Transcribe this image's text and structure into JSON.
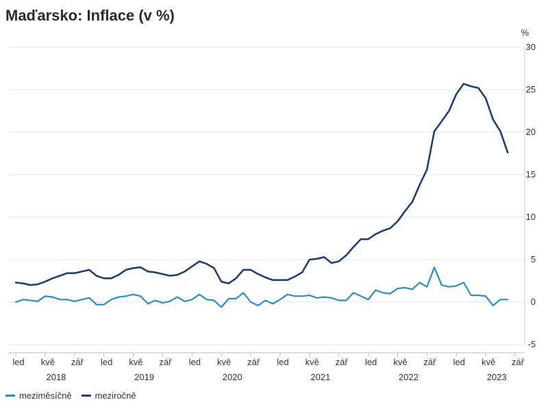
{
  "title": "Maďarsko: Inflace (v %)",
  "chart_data": {
    "type": "line",
    "title": "Maďarsko: Inflace (v %)",
    "unit_label": "%",
    "ylim": [
      -5,
      30
    ],
    "yticks": [
      -5,
      0,
      5,
      10,
      15,
      20,
      25,
      30
    ],
    "grid": true,
    "legend_position": "bottom-left",
    "x_month_ticks": [
      {
        "label": "led",
        "index": 0
      },
      {
        "label": "kvě",
        "index": 4
      },
      {
        "label": "zář",
        "index": 8
      },
      {
        "label": "led",
        "index": 12
      },
      {
        "label": "kvě",
        "index": 16
      },
      {
        "label": "zář",
        "index": 20
      },
      {
        "label": "led",
        "index": 24
      },
      {
        "label": "kvě",
        "index": 28
      },
      {
        "label": "zář",
        "index": 32
      },
      {
        "label": "led",
        "index": 36
      },
      {
        "label": "kvě",
        "index": 40
      },
      {
        "label": "zář",
        "index": 44
      },
      {
        "label": "led",
        "index": 48
      },
      {
        "label": "kvě",
        "index": 52
      },
      {
        "label": "zář",
        "index": 56
      },
      {
        "label": "led",
        "index": 60
      },
      {
        "label": "kvě",
        "index": 64
      },
      {
        "label": "zář",
        "index": 68
      }
    ],
    "x_year_labels": [
      {
        "label": "2018",
        "center_index": 5.5
      },
      {
        "label": "2019",
        "center_index": 17.5
      },
      {
        "label": "2020",
        "center_index": 29.5
      },
      {
        "label": "2021",
        "center_index": 41.5
      },
      {
        "label": "2022",
        "center_index": 53.5
      },
      {
        "label": "2023",
        "center_index": 65.5
      }
    ],
    "series": [
      {
        "name": "meziměsíčně",
        "color": "#2b8cbe",
        "values": [
          0.0,
          0.3,
          0.2,
          0.1,
          0.7,
          0.6,
          0.3,
          0.3,
          0.1,
          0.3,
          0.5,
          -0.3,
          -0.3,
          0.3,
          0.6,
          0.7,
          0.9,
          0.7,
          -0.2,
          0.2,
          -0.1,
          0.1,
          0.6,
          0.1,
          0.3,
          0.9,
          0.3,
          0.2,
          -0.6,
          0.4,
          0.4,
          1.1,
          0.0,
          -0.4,
          0.2,
          -0.2,
          0.3,
          0.9,
          0.7,
          0.7,
          0.8,
          0.5,
          0.6,
          0.5,
          0.2,
          0.2,
          1.1,
          0.7,
          0.3,
          1.4,
          1.1,
          1.0,
          1.6,
          1.7,
          1.5,
          2.3,
          1.8,
          4.1,
          2.0,
          1.8,
          1.9,
          2.3,
          0.8,
          0.8,
          0.7,
          -0.4,
          0.3,
          0.3
        ]
      },
      {
        "name": "meziročně",
        "color": "#1f3f6e",
        "values": [
          2.3,
          2.2,
          2.0,
          2.1,
          2.4,
          2.8,
          3.1,
          3.4,
          3.4,
          3.6,
          3.8,
          3.1,
          2.8,
          2.8,
          3.2,
          3.8,
          4.0,
          4.1,
          3.6,
          3.5,
          3.3,
          3.1,
          3.2,
          3.6,
          4.2,
          4.8,
          4.5,
          4.0,
          2.4,
          2.2,
          2.8,
          3.8,
          3.8,
          3.3,
          2.9,
          2.6,
          2.6,
          2.6,
          3.0,
          3.5,
          5.0,
          5.1,
          5.3,
          4.6,
          4.8,
          5.5,
          6.5,
          7.4,
          7.4,
          8.0,
          8.4,
          8.7,
          9.5,
          10.7,
          11.8,
          13.8,
          15.6,
          20.1,
          21.3,
          22.5,
          24.5,
          25.7,
          25.4,
          25.2,
          24.0,
          21.5,
          20.1,
          17.6
        ]
      }
    ]
  }
}
